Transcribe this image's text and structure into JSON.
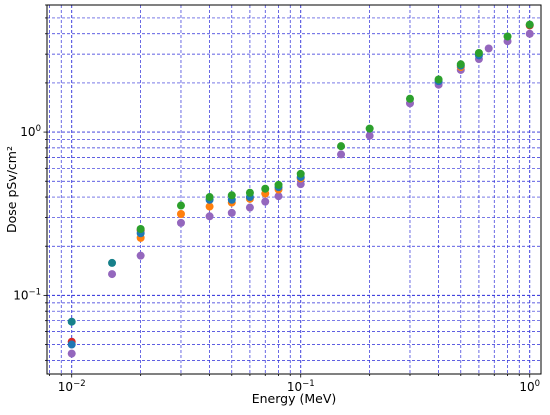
{
  "chart_data": {
    "type": "scatter",
    "title": "",
    "xlabel": "Energy (MeV)",
    "ylabel": "Dose pSv/cm²",
    "xscale": "log",
    "yscale": "log",
    "xlim": [
      0.0078,
      1.12
    ],
    "ylim": [
      0.033,
      6.0
    ],
    "grid": true,
    "legend": "none",
    "x_ticks": [
      {
        "value": 0.01,
        "base": "10",
        "exp": "−2"
      },
      {
        "value": 0.1,
        "base": "10",
        "exp": "−1"
      },
      {
        "value": 1,
        "base": "10",
        "exp": "0"
      }
    ],
    "y_ticks": [
      {
        "value": 0.1,
        "base": "10",
        "exp": "−1"
      },
      {
        "value": 1,
        "base": "10",
        "exp": "0"
      }
    ],
    "series": [
      {
        "color": "#9467bd",
        "x": [
          0.01,
          0.015,
          0.02,
          0.03,
          0.04,
          0.05,
          0.06,
          0.07,
          0.08,
          0.1,
          0.15,
          0.2,
          0.3,
          0.4,
          0.5,
          0.6,
          0.662,
          0.8,
          1.0
        ],
        "y": [
          0.044,
          0.135,
          0.175,
          0.278,
          0.305,
          0.32,
          0.345,
          0.375,
          0.405,
          0.48,
          0.73,
          0.95,
          1.5,
          1.95,
          2.4,
          2.8,
          3.25,
          3.6,
          4.0
        ]
      },
      {
        "color": "#d62728",
        "x": [
          0.01,
          0.02,
          1.0
        ],
        "y": [
          0.052,
          0.25,
          4.5
        ]
      },
      {
        "color": "#ff7f0e",
        "x": [
          0.02,
          0.03,
          0.04,
          0.05,
          0.06,
          0.07,
          0.08,
          0.1,
          0.5
        ],
        "y": [
          0.225,
          0.315,
          0.35,
          0.37,
          0.39,
          0.42,
          0.445,
          0.52,
          2.5
        ]
      },
      {
        "color": "#1f77b4",
        "x": [
          0.01,
          0.02,
          0.04,
          0.05,
          0.06,
          0.08,
          0.1,
          0.4,
          0.5,
          0.6
        ],
        "y": [
          0.05,
          0.24,
          0.385,
          0.385,
          0.4,
          0.46,
          0.53,
          2.05,
          2.55,
          2.95
        ]
      },
      {
        "color": "#2ca02c",
        "x": [
          0.02,
          0.03,
          0.04,
          0.05,
          0.06,
          0.07,
          0.08,
          0.1,
          0.15,
          0.2,
          0.3,
          0.4,
          0.5,
          0.6,
          0.8,
          1.0
        ],
        "y": [
          0.255,
          0.355,
          0.4,
          0.41,
          0.425,
          0.45,
          0.475,
          0.555,
          0.82,
          1.05,
          1.6,
          2.1,
          2.6,
          3.05,
          3.85,
          4.55
        ]
      },
      {
        "color": "#17808a",
        "x": [
          0.01,
          0.015
        ],
        "y": [
          0.069,
          0.158
        ]
      }
    ]
  }
}
